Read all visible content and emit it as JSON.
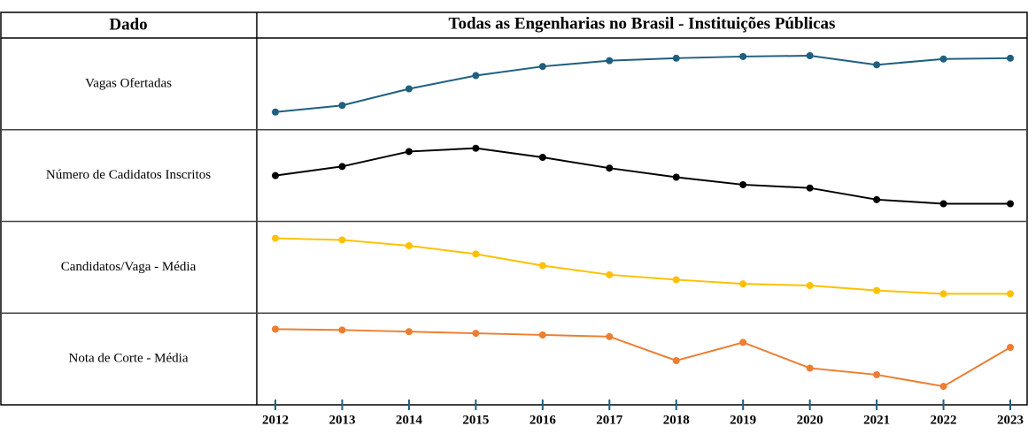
{
  "chart_data": {
    "type": "line",
    "row_header": "Dado",
    "title": "Todas as Engenharias no Brasil - Instituições Públicas",
    "categories": [
      "2012",
      "2013",
      "2014",
      "2015",
      "2016",
      "2017",
      "2018",
      "2019",
      "2020",
      "2021",
      "2022",
      "2023"
    ],
    "series": [
      {
        "name": "Vagas Ofertadas",
        "color": "#1f5f7f",
        "ylim": [
          0,
          100
        ],
        "values": [
          16,
          24,
          44,
          60,
          71,
          78,
          81,
          83,
          84,
          73,
          80,
          81
        ]
      },
      {
        "name": "Número de Cadidatos Inscritos",
        "color": "#000000",
        "ylim": [
          0,
          100
        ],
        "values": [
          50,
          61,
          79,
          83,
          72,
          59,
          48,
          39,
          35,
          21,
          16,
          16
        ]
      },
      {
        "name": "Candidatos/Vaga - Média",
        "color": "#ffc000",
        "ylim": [
          0,
          100
        ],
        "values": [
          85,
          83,
          76,
          66,
          52,
          41,
          35,
          30,
          28,
          22,
          18,
          18
        ]
      },
      {
        "name": "Nota de Corte - Média",
        "color": "#ed7d31",
        "ylim": [
          0,
          100
        ],
        "values": [
          86,
          85,
          83,
          81,
          79,
          77,
          48,
          70,
          39,
          31,
          17,
          64
        ]
      }
    ]
  }
}
